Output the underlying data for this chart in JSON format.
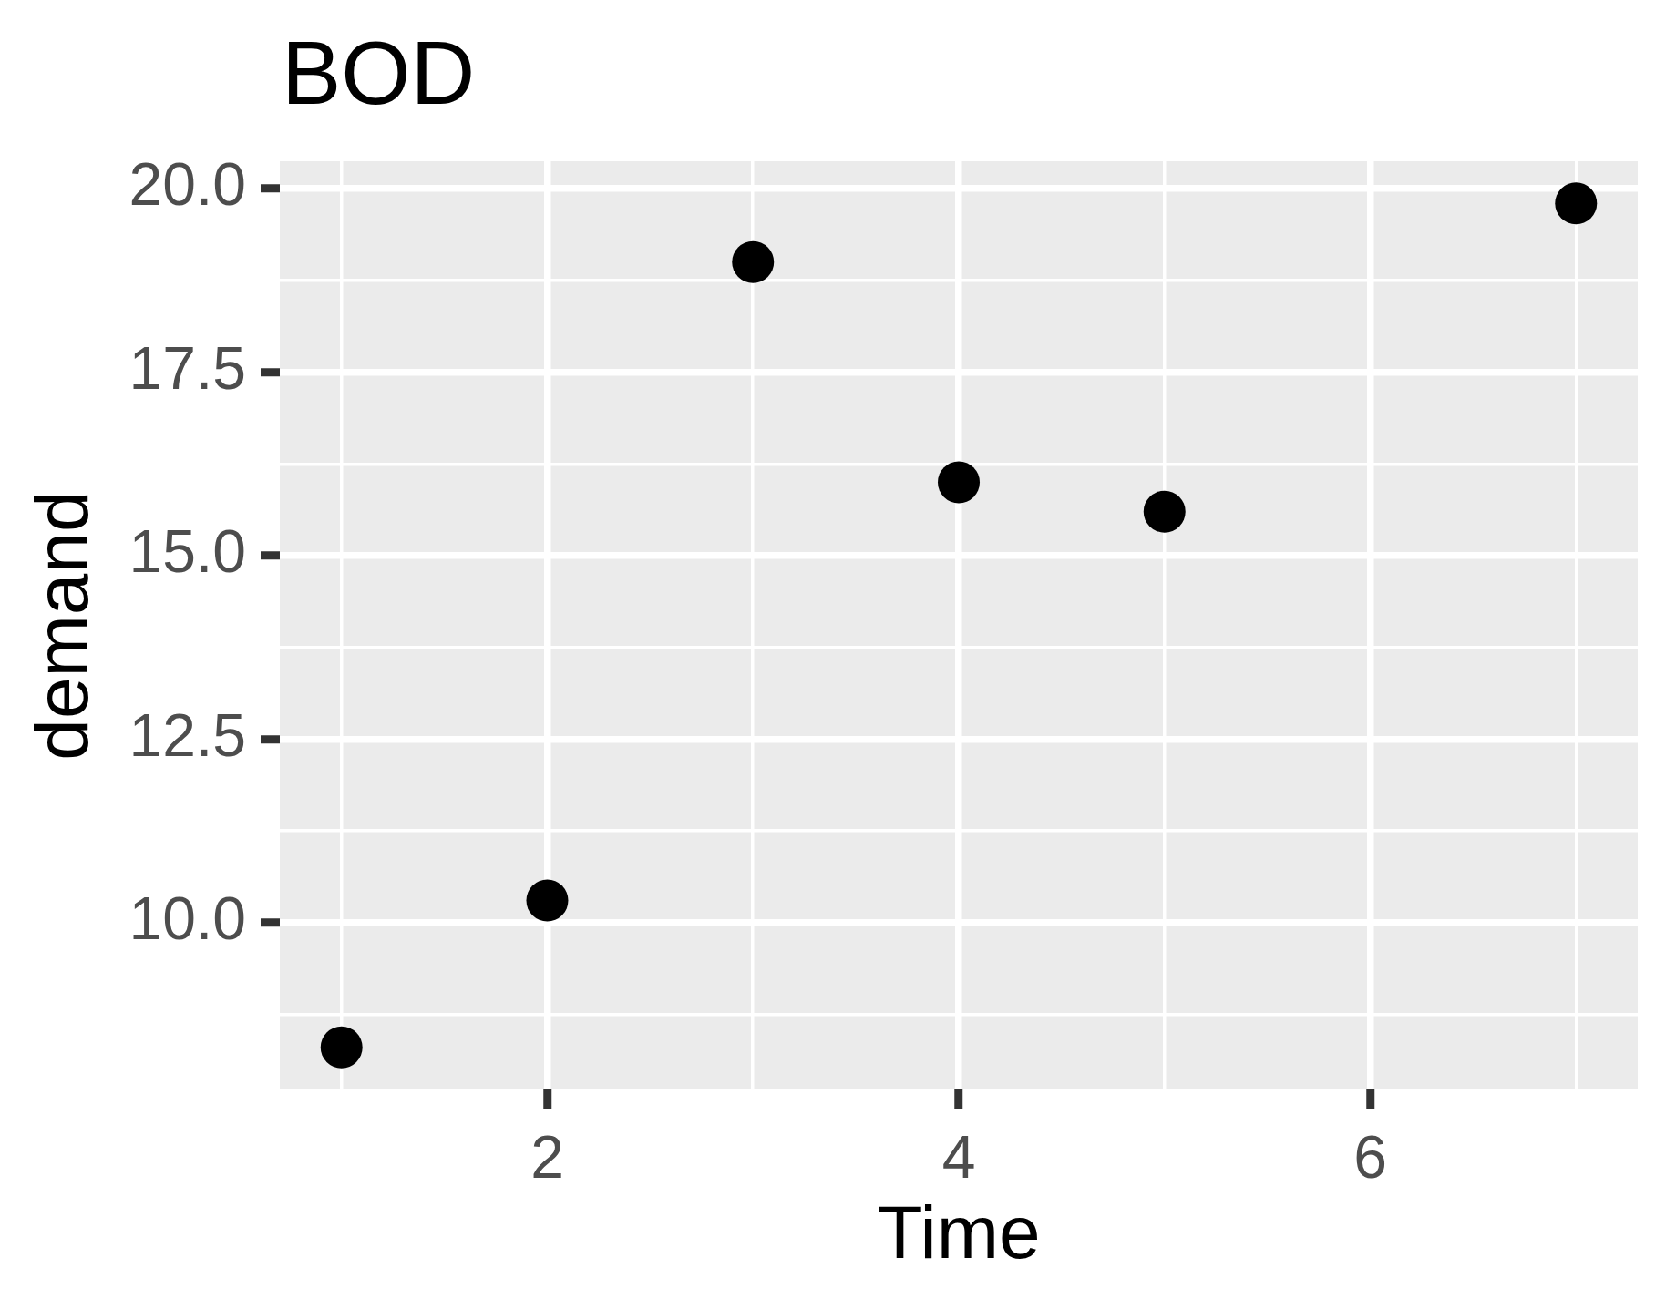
{
  "chart_data": {
    "type": "scatter",
    "title": "BOD",
    "xlabel": "Time",
    "ylabel": "demand",
    "x": [
      1,
      2,
      3,
      4,
      5,
      7
    ],
    "values": [
      8.3,
      10.3,
      19.0,
      16.0,
      15.6,
      19.8
    ],
    "color": "#000000",
    "marker": "circle",
    "xlim": [
      0.7,
      7.3
    ],
    "xticks": [
      {
        "value": 1,
        "label": null
      },
      2,
      {
        "value": 3,
        "label": null
      },
      4,
      {
        "value": 5,
        "label": null
      },
      6,
      {
        "value": 7,
        "label": null
      }
    ],
    "ylim": [
      7.725,
      20.375
    ],
    "yticks": [
      {
        "value": 8.75,
        "label": null
      },
      {
        "value": 10,
        "label": "10.0"
      },
      {
        "value": 11.25,
        "label": null
      },
      12.5,
      {
        "value": 13.75,
        "label": null
      },
      {
        "value": 15,
        "label": "15.0"
      },
      {
        "value": 16.25,
        "label": null
      },
      17.5,
      {
        "value": 18.75,
        "label": null
      },
      {
        "value": 20,
        "label": "20.0"
      }
    ],
    "grid": true,
    "legend": false
  }
}
